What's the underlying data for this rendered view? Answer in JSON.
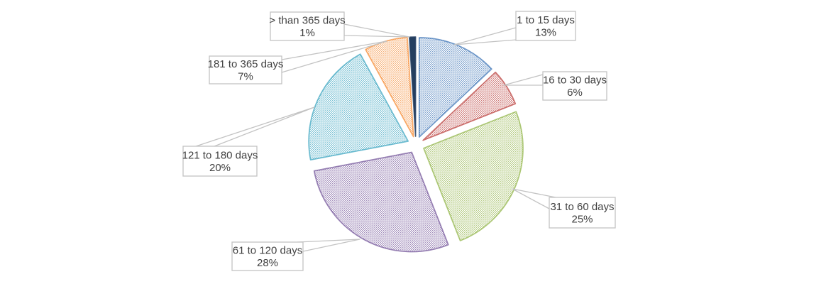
{
  "chart_data": {
    "type": "pie",
    "title": "",
    "exploded": true,
    "start_angle_deg": 0,
    "direction": "clockwise",
    "background": "#ffffff",
    "callout_border_color": "#c3c3c3",
    "text_color": "#404040",
    "slices": [
      {
        "label": "1 to 15 days",
        "value": 13,
        "pct_label": "13%",
        "color": "#4F81BD",
        "fill_style": "dotted-pattern"
      },
      {
        "label": "16 to 30 days",
        "value": 6,
        "pct_label": "6%",
        "color": "#C0504D",
        "fill_style": "dotted-pattern"
      },
      {
        "label": "31 to 60 days",
        "value": 25,
        "pct_label": "25%",
        "color": "#9BBB59",
        "fill_style": "dotted-pattern"
      },
      {
        "label": "61 to 120 days",
        "value": 28,
        "pct_label": "28%",
        "color": "#8064A2",
        "fill_style": "dotted-pattern"
      },
      {
        "label": "121 to 180 days",
        "value": 20,
        "pct_label": "20%",
        "color": "#4BACC6",
        "fill_style": "dotted-pattern"
      },
      {
        "label": "181 to 365 days",
        "value": 7,
        "pct_label": "7%",
        "color": "#F79646",
        "fill_style": "dotted-pattern"
      },
      {
        "label": "> than 365 days",
        "value": 1,
        "pct_label": "1%",
        "color": "#243F60",
        "fill_style": "solid"
      }
    ]
  }
}
